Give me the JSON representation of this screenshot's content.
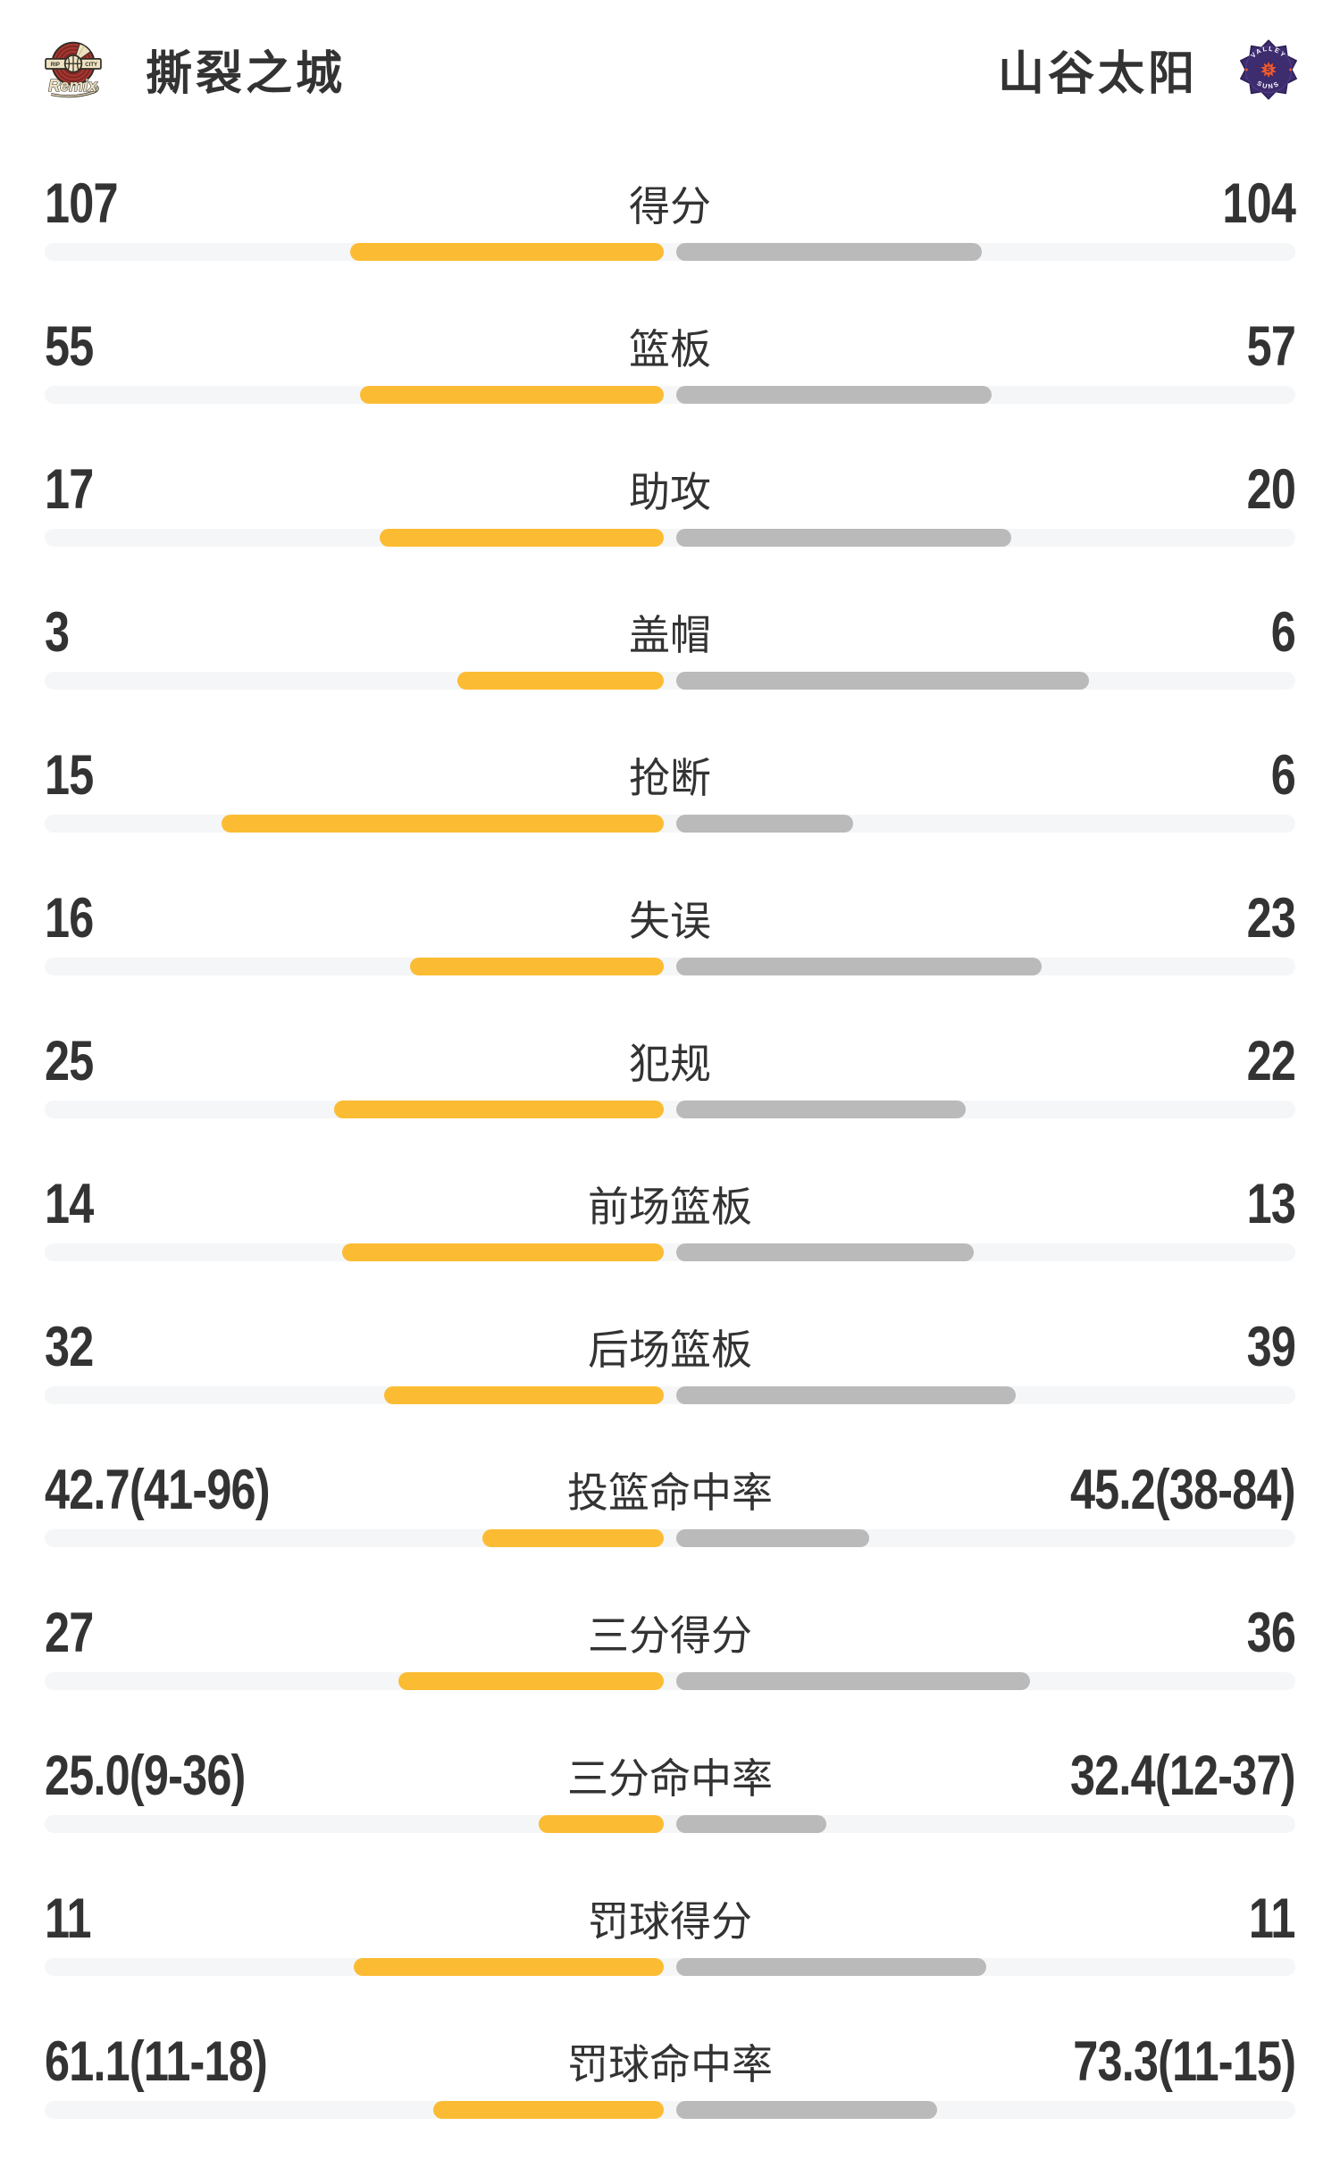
{
  "header": {
    "left_team": {
      "name": "撕裂之城",
      "logo_name": "rip-city-remix-badge",
      "logo_text": {
        "banner_left": "RIP",
        "banner_right": "CITY",
        "script": "Remix"
      },
      "logo_colors": {
        "red": "#A93732",
        "ring": "#7E2823",
        "cream": "#EDE2C2",
        "dark": "#312B24"
      }
    },
    "right_team": {
      "name": "山谷太阳",
      "logo_name": "valley-suns-badge",
      "logo_text": {
        "arc_top": "VALLEY",
        "arc_bottom": "SUNS",
        "center": "S"
      },
      "logo_colors": {
        "purple": "#3D2C6E",
        "purple_dark": "#2A1D52",
        "orange": "#F15A29",
        "white": "#FFFFFF"
      }
    }
  },
  "colors": {
    "left_bar": "#FBBC33",
    "right_bar": "#BABABA",
    "track": "#F5F6F8",
    "text": "#333333",
    "background": "#FFFFFF"
  },
  "chart_data": {
    "type": "bar",
    "subtype": "mirrored-team-comparison",
    "left_team": "撕裂之城",
    "right_team": "山谷太阳",
    "legend_position": "none",
    "grid": false,
    "bar_note": "bars grow outward from center; left_bar_pct / right_bar_pct = bar length as % of half-track (693px); count rows use value/(left+right)",
    "rows": [
      {
        "label": "得分",
        "left": "107",
        "right": "104",
        "left_value": 107,
        "right_value": 104,
        "left_bar_pct": 50.7,
        "right_bar_pct": 49.3
      },
      {
        "label": "篮板",
        "left": "55",
        "right": "57",
        "left_value": 55,
        "right_value": 57,
        "left_bar_pct": 49.1,
        "right_bar_pct": 50.9
      },
      {
        "label": "助攻",
        "left": "17",
        "right": "20",
        "left_value": 17,
        "right_value": 20,
        "left_bar_pct": 45.9,
        "right_bar_pct": 54.1
      },
      {
        "label": "盖帽",
        "left": "3",
        "right": "6",
        "left_value": 3,
        "right_value": 6,
        "left_bar_pct": 33.3,
        "right_bar_pct": 66.7
      },
      {
        "label": "抢断",
        "left": "15",
        "right": "6",
        "left_value": 15,
        "right_value": 6,
        "left_bar_pct": 71.4,
        "right_bar_pct": 28.6
      },
      {
        "label": "失误",
        "left": "16",
        "right": "23",
        "left_value": 16,
        "right_value": 23,
        "left_bar_pct": 41.0,
        "right_bar_pct": 59.0
      },
      {
        "label": "犯规",
        "left": "25",
        "right": "22",
        "left_value": 25,
        "right_value": 22,
        "left_bar_pct": 53.2,
        "right_bar_pct": 46.8
      },
      {
        "label": "前场篮板",
        "left": "14",
        "right": "13",
        "left_value": 14,
        "right_value": 13,
        "left_bar_pct": 51.9,
        "right_bar_pct": 48.1
      },
      {
        "label": "后场篮板",
        "left": "32",
        "right": "39",
        "left_value": 32,
        "right_value": 39,
        "left_bar_pct": 45.1,
        "right_bar_pct": 54.9
      },
      {
        "label": "投篮命中率",
        "left": "42.7(41-96)",
        "right": "45.2(38-84)",
        "left_value": 42.7,
        "right_value": 45.2,
        "left_detail": "41-96",
        "right_detail": "38-84",
        "left_bar_pct": 29.3,
        "right_bar_pct": 31.1
      },
      {
        "label": "三分得分",
        "left": "27",
        "right": "36",
        "left_value": 27,
        "right_value": 36,
        "left_bar_pct": 42.9,
        "right_bar_pct": 57.1
      },
      {
        "label": "三分命中率",
        "left": "25.0(9-36)",
        "right": "32.4(12-37)",
        "left_value": 25.0,
        "right_value": 32.4,
        "left_detail": "9-36",
        "right_detail": "12-37",
        "left_bar_pct": 20.2,
        "right_bar_pct": 24.2
      },
      {
        "label": "罚球得分",
        "left": "11",
        "right": "11",
        "left_value": 11,
        "right_value": 11,
        "left_bar_pct": 50.0,
        "right_bar_pct": 50.0
      },
      {
        "label": "罚球命中率",
        "left": "61.1(11-18)",
        "right": "73.3(11-15)",
        "left_value": 61.1,
        "right_value": 73.3,
        "left_detail": "11-18",
        "right_detail": "11-15",
        "left_bar_pct": 37.3,
        "right_bar_pct": 42.2
      }
    ]
  }
}
